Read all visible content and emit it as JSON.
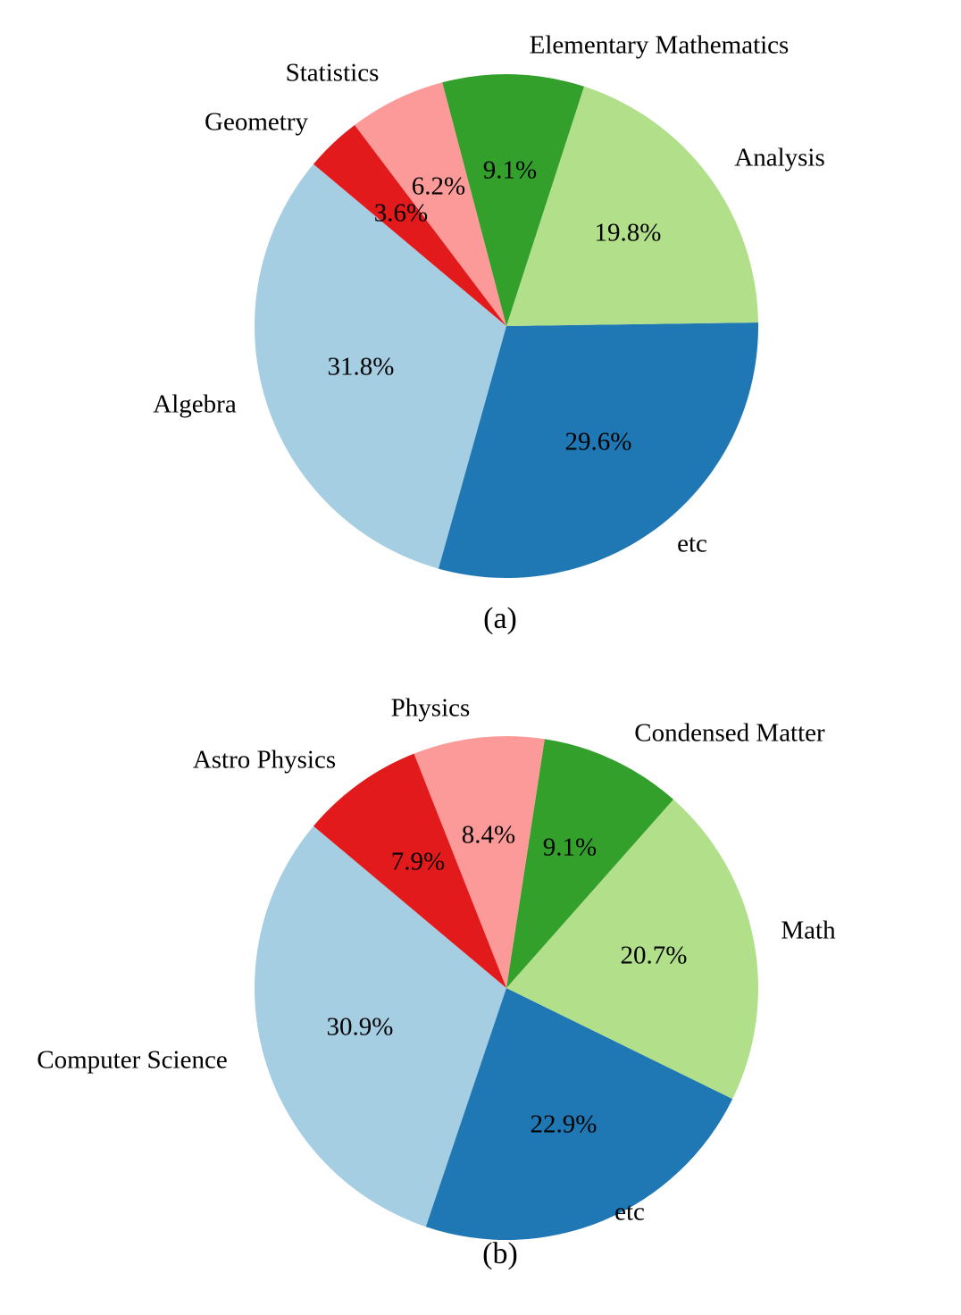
{
  "chart_data": [
    {
      "type": "pie",
      "caption": "(a)",
      "slices": [
        {
          "label": "Algebra",
          "value": 31.8,
          "pct_text": "31.8%",
          "color": "#a6cee3"
        },
        {
          "label": "etc",
          "value": 29.6,
          "pct_text": "29.6%",
          "color": "#1f78b4"
        },
        {
          "label": "Analysis",
          "value": 19.8,
          "pct_text": "19.8%",
          "color": "#b2df8a"
        },
        {
          "label": "Elementary Mathematics",
          "value": 9.1,
          "pct_text": "9.1%",
          "color": "#33a02c"
        },
        {
          "label": "Statistics",
          "value": 6.2,
          "pct_text": "6.2%",
          "color": "#fb9a99"
        },
        {
          "label": "Geometry",
          "value": 3.6,
          "pct_text": "3.6%",
          "color": "#e31a1c"
        }
      ]
    },
    {
      "type": "pie",
      "caption": "(b)",
      "slices": [
        {
          "label": "Computer Science",
          "value": 30.9,
          "pct_text": "30.9%",
          "color": "#a6cee3"
        },
        {
          "label": "etc",
          "value": 22.9,
          "pct_text": "22.9%",
          "color": "#1f78b4"
        },
        {
          "label": "Math",
          "value": 20.7,
          "pct_text": "20.7%",
          "color": "#b2df8a"
        },
        {
          "label": "Condensed Matter",
          "value": 9.1,
          "pct_text": "9.1%",
          "color": "#33a02c"
        },
        {
          "label": "Physics",
          "value": 8.4,
          "pct_text": "8.4%",
          "color": "#fb9a99"
        },
        {
          "label": "Astro Physics",
          "value": 7.9,
          "pct_text": "7.9%",
          "color": "#e31a1c"
        }
      ]
    }
  ]
}
